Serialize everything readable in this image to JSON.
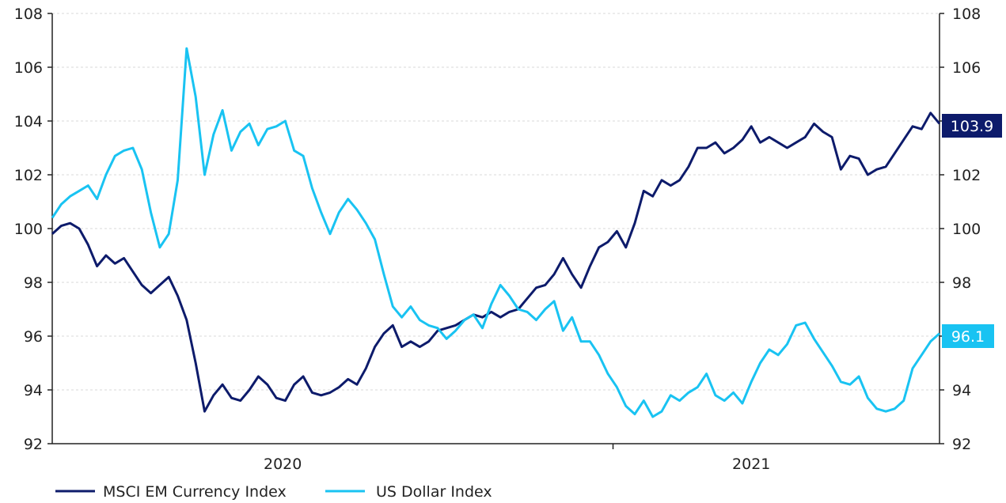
{
  "colors": {
    "msci": "#0d1b6b",
    "usd": "#19c3f2",
    "axis": "#222222",
    "grid": "#d9d9d9"
  },
  "legend": {
    "msci_label": "MSCI EM Currency Index",
    "usd_label": "US Dollar Index"
  },
  "end_labels": {
    "msci": "103.9",
    "usd": "96.1"
  },
  "chart_data": {
    "type": "line",
    "title": "",
    "xlabel": "",
    "ylabel": "",
    "ylim": [
      92,
      108
    ],
    "y_ticks": [
      92,
      94,
      96,
      98,
      100,
      102,
      104,
      106,
      108
    ],
    "y_right_ticks": [
      92,
      94,
      96,
      98,
      100,
      102,
      104,
      106,
      108
    ],
    "xlim": [
      "2019-07-05",
      "2021-05-28"
    ],
    "x_tick_labels": [
      "2020",
      "2021"
    ],
    "x_tick_label_dates": [
      "2020-01-01",
      "2021-01-01"
    ],
    "x_tick_mark_dates": [
      "2020-09-15"
    ],
    "grid": "horizontal",
    "legend_position": "bottom-left",
    "series": [
      {
        "name": "MSCI EM Currency Index",
        "color": "#0d1b6b",
        "points": [
          [
            "2019-07-05",
            99.8
          ],
          [
            "2019-07-12",
            100.1
          ],
          [
            "2019-07-19",
            100.2
          ],
          [
            "2019-07-26",
            100.0
          ],
          [
            "2019-08-02",
            99.4
          ],
          [
            "2019-08-09",
            98.6
          ],
          [
            "2019-08-16",
            99.0
          ],
          [
            "2019-08-23",
            98.7
          ],
          [
            "2019-08-30",
            98.9
          ],
          [
            "2019-09-06",
            98.4
          ],
          [
            "2019-09-13",
            97.9
          ],
          [
            "2019-09-20",
            97.6
          ],
          [
            "2019-09-27",
            97.9
          ],
          [
            "2019-10-04",
            98.2
          ],
          [
            "2019-10-11",
            97.5
          ],
          [
            "2019-10-18",
            96.6
          ],
          [
            "2019-10-25",
            95.0
          ],
          [
            "2019-11-01",
            93.2
          ],
          [
            "2019-11-08",
            93.8
          ],
          [
            "2019-11-15",
            94.2
          ],
          [
            "2019-11-22",
            93.7
          ],
          [
            "2019-11-29",
            93.6
          ],
          [
            "2019-12-06",
            94.0
          ],
          [
            "2019-12-13",
            94.5
          ],
          [
            "2019-12-20",
            94.2
          ],
          [
            "2019-12-27",
            93.7
          ],
          [
            "2020-01-03",
            93.6
          ],
          [
            "2020-01-10",
            94.2
          ],
          [
            "2020-01-17",
            94.5
          ],
          [
            "2020-01-24",
            93.9
          ],
          [
            "2020-01-31",
            93.8
          ],
          [
            "2020-02-07",
            93.9
          ],
          [
            "2020-02-14",
            94.1
          ],
          [
            "2020-02-21",
            94.4
          ],
          [
            "2020-02-28",
            94.2
          ],
          [
            "2020-03-06",
            94.8
          ],
          [
            "2020-03-13",
            95.6
          ],
          [
            "2020-03-20",
            96.1
          ],
          [
            "2020-03-27",
            96.4
          ],
          [
            "2020-04-03",
            95.6
          ],
          [
            "2020-04-10",
            95.8
          ],
          [
            "2020-04-17",
            95.6
          ],
          [
            "2020-04-24",
            95.8
          ],
          [
            "2020-05-01",
            96.2
          ],
          [
            "2020-05-08",
            96.3
          ],
          [
            "2020-05-15",
            96.4
          ],
          [
            "2020-05-22",
            96.6
          ],
          [
            "2020-05-29",
            96.8
          ],
          [
            "2020-06-05",
            96.7
          ],
          [
            "2020-06-12",
            96.9
          ],
          [
            "2020-06-19",
            96.7
          ],
          [
            "2020-06-26",
            96.9
          ],
          [
            "2020-07-03",
            97.0
          ],
          [
            "2020-07-10",
            97.4
          ],
          [
            "2020-07-17",
            97.8
          ],
          [
            "2020-07-24",
            97.9
          ],
          [
            "2020-07-31",
            98.3
          ],
          [
            "2020-08-07",
            98.9
          ],
          [
            "2020-08-14",
            98.3
          ],
          [
            "2020-08-21",
            97.8
          ],
          [
            "2020-08-28",
            98.6
          ],
          [
            "2020-09-04",
            99.3
          ],
          [
            "2020-09-11",
            99.5
          ],
          [
            "2020-09-18",
            99.9
          ],
          [
            "2020-09-25",
            99.3
          ],
          [
            "2020-10-02",
            100.2
          ],
          [
            "2020-10-09",
            101.4
          ],
          [
            "2020-10-16",
            101.2
          ],
          [
            "2020-10-23",
            101.8
          ],
          [
            "2020-10-30",
            101.6
          ],
          [
            "2020-11-06",
            101.8
          ],
          [
            "2020-11-13",
            102.3
          ],
          [
            "2020-11-20",
            103.0
          ],
          [
            "2020-11-27",
            103.0
          ],
          [
            "2020-12-04",
            103.2
          ],
          [
            "2020-12-11",
            102.8
          ],
          [
            "2020-12-18",
            103.0
          ],
          [
            "2020-12-25",
            103.3
          ],
          [
            "2021-01-01",
            103.8
          ],
          [
            "2021-01-08",
            103.2
          ],
          [
            "2021-01-15",
            103.4
          ],
          [
            "2021-01-22",
            103.2
          ],
          [
            "2021-01-29",
            103.0
          ],
          [
            "2021-02-05",
            103.2
          ],
          [
            "2021-02-12",
            103.4
          ],
          [
            "2021-02-19",
            103.9
          ],
          [
            "2021-02-26",
            103.6
          ],
          [
            "2021-03-05",
            103.4
          ],
          [
            "2021-03-12",
            102.2
          ],
          [
            "2021-03-19",
            102.7
          ],
          [
            "2021-03-26",
            102.6
          ],
          [
            "2021-04-02",
            102.0
          ],
          [
            "2021-04-09",
            102.2
          ],
          [
            "2021-04-16",
            102.3
          ],
          [
            "2021-04-23",
            102.8
          ],
          [
            "2021-04-30",
            103.3
          ],
          [
            "2021-05-07",
            103.8
          ],
          [
            "2021-05-14",
            103.7
          ],
          [
            "2021-05-21",
            104.3
          ],
          [
            "2021-05-28",
            103.9
          ]
        ]
      },
      {
        "name": "US Dollar Index",
        "color": "#19c3f2",
        "points": [
          [
            "2019-07-05",
            100.4
          ],
          [
            "2019-07-12",
            100.9
          ],
          [
            "2019-07-19",
            101.2
          ],
          [
            "2019-07-26",
            101.4
          ],
          [
            "2019-08-02",
            101.6
          ],
          [
            "2019-08-09",
            101.1
          ],
          [
            "2019-08-16",
            102.0
          ],
          [
            "2019-08-23",
            102.7
          ],
          [
            "2019-08-30",
            102.9
          ],
          [
            "2019-09-06",
            103.0
          ],
          [
            "2019-09-13",
            102.2
          ],
          [
            "2019-09-20",
            100.6
          ],
          [
            "2019-09-27",
            99.3
          ],
          [
            "2019-10-04",
            99.8
          ],
          [
            "2019-10-11",
            101.8
          ],
          [
            "2019-10-18",
            106.7
          ],
          [
            "2019-10-25",
            104.9
          ],
          [
            "2019-11-01",
            102.0
          ],
          [
            "2019-11-08",
            103.5
          ],
          [
            "2019-11-15",
            104.4
          ],
          [
            "2019-11-22",
            102.9
          ],
          [
            "2019-11-29",
            103.6
          ],
          [
            "2019-12-06",
            103.9
          ],
          [
            "2019-12-13",
            103.1
          ],
          [
            "2019-12-20",
            103.7
          ],
          [
            "2019-12-27",
            103.8
          ],
          [
            "2020-01-03",
            104.0
          ],
          [
            "2020-01-10",
            102.9
          ],
          [
            "2020-01-17",
            102.7
          ],
          [
            "2020-01-24",
            101.5
          ],
          [
            "2020-01-31",
            100.6
          ],
          [
            "2020-02-07",
            99.8
          ],
          [
            "2020-02-14",
            100.6
          ],
          [
            "2020-02-21",
            101.1
          ],
          [
            "2020-02-28",
            100.7
          ],
          [
            "2020-03-06",
            100.2
          ],
          [
            "2020-03-13",
            99.6
          ],
          [
            "2020-03-20",
            98.3
          ],
          [
            "2020-03-27",
            97.1
          ],
          [
            "2020-04-03",
            96.7
          ],
          [
            "2020-04-10",
            97.1
          ],
          [
            "2020-04-17",
            96.6
          ],
          [
            "2020-04-24",
            96.4
          ],
          [
            "2020-05-01",
            96.3
          ],
          [
            "2020-05-08",
            95.9
          ],
          [
            "2020-05-15",
            96.2
          ],
          [
            "2020-05-22",
            96.6
          ],
          [
            "2020-05-29",
            96.8
          ],
          [
            "2020-06-05",
            96.3
          ],
          [
            "2020-06-12",
            97.2
          ],
          [
            "2020-06-19",
            97.9
          ],
          [
            "2020-06-26",
            97.5
          ],
          [
            "2020-07-03",
            97.0
          ],
          [
            "2020-07-10",
            96.9
          ],
          [
            "2020-07-17",
            96.6
          ],
          [
            "2020-07-24",
            97.0
          ],
          [
            "2020-07-31",
            97.3
          ],
          [
            "2020-08-07",
            96.2
          ],
          [
            "2020-08-14",
            96.7
          ],
          [
            "2020-08-21",
            95.8
          ],
          [
            "2020-08-28",
            95.8
          ],
          [
            "2020-09-04",
            95.3
          ],
          [
            "2020-09-11",
            94.6
          ],
          [
            "2020-09-18",
            94.1
          ],
          [
            "2020-09-25",
            93.4
          ],
          [
            "2020-10-02",
            93.1
          ],
          [
            "2020-10-09",
            93.6
          ],
          [
            "2020-10-16",
            93.0
          ],
          [
            "2020-10-23",
            93.2
          ],
          [
            "2020-10-30",
            93.8
          ],
          [
            "2020-11-06",
            93.6
          ],
          [
            "2020-11-13",
            93.9
          ],
          [
            "2020-11-20",
            94.1
          ],
          [
            "2020-11-27",
            94.6
          ],
          [
            "2020-12-04",
            93.8
          ],
          [
            "2020-12-11",
            93.6
          ],
          [
            "2020-12-18",
            93.9
          ],
          [
            "2020-12-25",
            93.5
          ],
          [
            "2021-01-01",
            94.3
          ],
          [
            "2021-01-08",
            95.0
          ],
          [
            "2021-01-15",
            95.5
          ],
          [
            "2021-01-22",
            95.3
          ],
          [
            "2021-01-29",
            95.7
          ],
          [
            "2021-02-05",
            96.4
          ],
          [
            "2021-02-12",
            96.5
          ],
          [
            "2021-02-19",
            95.9
          ],
          [
            "2021-02-26",
            95.4
          ],
          [
            "2021-03-05",
            94.9
          ],
          [
            "2021-03-12",
            94.3
          ],
          [
            "2021-03-19",
            94.2
          ],
          [
            "2021-03-26",
            94.5
          ],
          [
            "2021-04-02",
            93.7
          ],
          [
            "2021-04-09",
            93.3
          ],
          [
            "2021-04-16",
            93.2
          ],
          [
            "2021-04-23",
            93.3
          ],
          [
            "2021-04-30",
            93.6
          ],
          [
            "2021-05-07",
            94.8
          ],
          [
            "2021-05-14",
            95.3
          ],
          [
            "2021-05-21",
            95.8
          ],
          [
            "2021-05-28",
            96.1
          ]
        ]
      }
    ]
  }
}
